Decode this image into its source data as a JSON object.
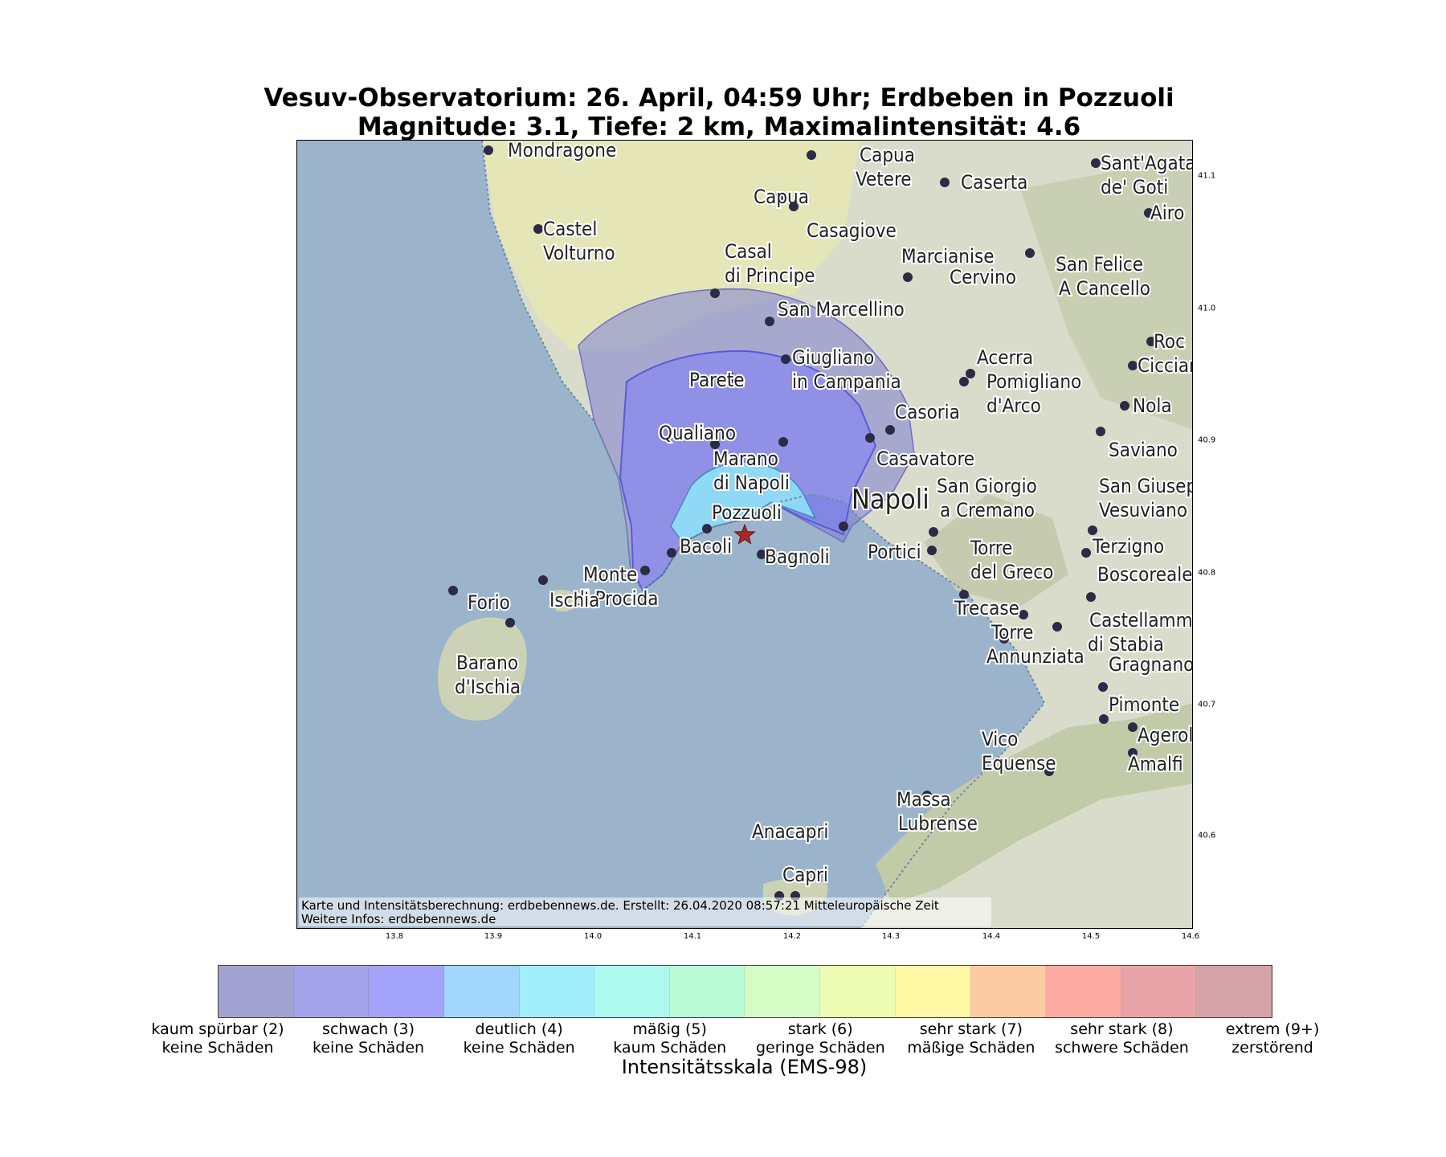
{
  "title_line1": "Vesuv-Observatorium: 26. April, 04:59 Uhr; Erdbeben in Pozzuoli",
  "title_line2": "Magnitude: 3.1, Tiefe: 2 km, Maximalintensität: 4.6",
  "credit_line1": "Karte und Intensitätsberechnung: erdbebennews.de. Erstellt: 26.04.2020 08:57:21 Mitteleuropäische Zeit",
  "credit_line2": "Weitere Infos: erdbebennews.de",
  "x_ticks": [
    "13.8",
    "13.9",
    "14.0",
    "14.1",
    "14.2",
    "14.3",
    "14.4",
    "14.5",
    "14.6"
  ],
  "y_ticks": [
    "41.1",
    "41.0",
    "40.9",
    "40.8",
    "40.7",
    "40.6"
  ],
  "colorbar": {
    "axis_label": "Intensitätsskala (EMS-98)",
    "colors": [
      "#a3a3d1",
      "#a3a3ea",
      "#a3a3fc",
      "#a3d6fc",
      "#a3eefc",
      "#aef9ee",
      "#b9fcd6",
      "#d6fcc6",
      "#ebfcb2",
      "#fcf8a3",
      "#fccba3",
      "#fcaba3",
      "#e8a3a8",
      "#d4a3a8"
    ],
    "labels": [
      {
        "line1": "kaum spürbar (2)",
        "line2": "keine Schäden"
      },
      {
        "line1": "schwach (3)",
        "line2": "keine Schäden"
      },
      {
        "line1": "deutlich (4)",
        "line2": "keine Schäden"
      },
      {
        "line1": "mäßig (5)",
        "line2": "kaum Schäden"
      },
      {
        "line1": "stark (6)",
        "line2": "geringe Schäden"
      },
      {
        "line1": "sehr stark (7)",
        "line2": "mäßige Schäden"
      },
      {
        "line1": "sehr stark (8)",
        "line2": "schwere Schäden"
      },
      {
        "line1": "extrem (9+)",
        "line2": "zerstörend"
      }
    ]
  },
  "map": {
    "epicenter": {
      "lon": 14.15,
      "lat": 40.828,
      "symbol": "star",
      "color": "#a32a2a"
    },
    "water_color": "#9bb4cb",
    "land_color": "#d9dccb",
    "places": [
      {
        "name": "Mondragone",
        "lines": [
          "Mondragone"
        ]
      },
      {
        "name": "Capua Vetere",
        "lines": [
          "Capua",
          "Vetere"
        ]
      },
      {
        "name": "Caserta",
        "lines": [
          "Caserta"
        ]
      },
      {
        "name": "Sant'Agata de' Goti",
        "lines": [
          "Sant'Agata",
          "de' Goti"
        ]
      },
      {
        "name": "Capua",
        "lines": [
          "Capua"
        ]
      },
      {
        "name": "Airola",
        "lines": [
          "Airo"
        ]
      },
      {
        "name": "Castel Volturno",
        "lines": [
          "Castel",
          "Volturno"
        ]
      },
      {
        "name": "Casagiove",
        "lines": [
          "Casagiove"
        ]
      },
      {
        "name": "Casal di Principe",
        "lines": [
          "Casal",
          "di Principe"
        ]
      },
      {
        "name": "Marcianise",
        "lines": [
          "Marcianise"
        ]
      },
      {
        "name": "Cervino",
        "lines": [
          "Cervino"
        ]
      },
      {
        "name": "San Felice A Cancello",
        "lines": [
          "San Felice",
          "A Cancello"
        ]
      },
      {
        "name": "San Marcellino",
        "lines": [
          "San Marcellino"
        ]
      },
      {
        "name": "Acerra",
        "lines": [
          "Acerra"
        ]
      },
      {
        "name": "Roccarainola",
        "lines": [
          "Roc"
        ]
      },
      {
        "name": "Giugliano in Campania",
        "lines": [
          "Giugliano",
          "in Campania"
        ]
      },
      {
        "name": "Parete",
        "lines": [
          "Parete"
        ]
      },
      {
        "name": "Pomigliano d'Arco",
        "lines": [
          "Pomigliano",
          "d'Arco"
        ]
      },
      {
        "name": "Cicciano",
        "lines": [
          "Ciccian"
        ]
      },
      {
        "name": "Nola",
        "lines": [
          "Nola"
        ]
      },
      {
        "name": "Casoria",
        "lines": [
          "Casoria"
        ]
      },
      {
        "name": "Qualiano",
        "lines": [
          "Qualiano"
        ]
      },
      {
        "name": "Saviano",
        "lines": [
          "Saviano"
        ]
      },
      {
        "name": "Marano di Napoli",
        "lines": [
          "Marano",
          "di Napoli"
        ]
      },
      {
        "name": "Casavatore",
        "lines": [
          "Casavatore"
        ]
      },
      {
        "name": "San Giorgio a Cremano",
        "lines": [
          "San Giorgio",
          "a Cremano"
        ]
      },
      {
        "name": "San Giuseppe Vesuviano",
        "lines": [
          "San Giusep",
          "Vesuviano"
        ]
      },
      {
        "name": "Napoli",
        "lines": [
          "Napoli"
        ]
      },
      {
        "name": "Pozzuoli",
        "lines": [
          "Pozzuoli"
        ]
      },
      {
        "name": "Bacoli",
        "lines": [
          "Bacoli"
        ]
      },
      {
        "name": "Portici",
        "lines": [
          "Portici"
        ]
      },
      {
        "name": "Terzigno",
        "lines": [
          "Terzigno"
        ]
      },
      {
        "name": "Bagnoli",
        "lines": [
          "Bagnoli"
        ]
      },
      {
        "name": "Torre del Greco",
        "lines": [
          "Torre",
          "del Greco"
        ]
      },
      {
        "name": "Boscoreale",
        "lines": [
          "Boscoreale"
        ]
      },
      {
        "name": "Monte di Procida",
        "lines": [
          "Monte",
          "di Procida"
        ]
      },
      {
        "name": "Ischia",
        "lines": [
          "Ischia"
        ]
      },
      {
        "name": "Forio",
        "lines": [
          "Forio"
        ]
      },
      {
        "name": "Trecase",
        "lines": [
          "Trecase"
        ]
      },
      {
        "name": "Castellammare di Stabia",
        "lines": [
          "Castellamma",
          "di Stabia"
        ]
      },
      {
        "name": "Torre Annunziata",
        "lines": [
          "Torre",
          "Annunziata"
        ]
      },
      {
        "name": "Barano d'Ischia",
        "lines": [
          "Barano",
          "d'Ischia"
        ]
      },
      {
        "name": "Gragnano",
        "lines": [
          "Gragnano"
        ]
      },
      {
        "name": "Pimonte",
        "lines": [
          "Pimonte"
        ]
      },
      {
        "name": "Vico Equense",
        "lines": [
          "Vico",
          "Equense"
        ]
      },
      {
        "name": "Agerola",
        "lines": [
          "Agerol"
        ]
      },
      {
        "name": "Amalfi",
        "lines": [
          "Amalfi"
        ]
      },
      {
        "name": "Massa Lubrense",
        "lines": [
          "Massa",
          "Lubrense"
        ]
      },
      {
        "name": "Anacapri",
        "lines": [
          "Anacapri"
        ]
      },
      {
        "name": "Capri",
        "lines": [
          "Capri"
        ]
      }
    ]
  }
}
